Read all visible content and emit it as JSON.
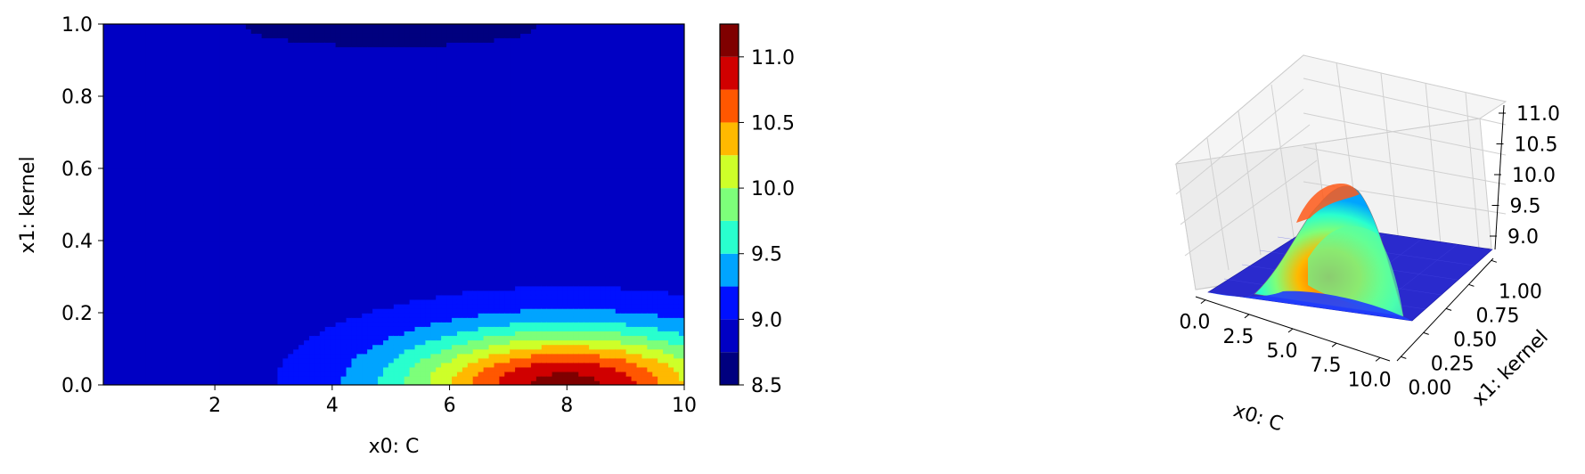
{
  "chart_data": [
    {
      "type": "contour",
      "xlabel": "x0: C",
      "ylabel": "x1: kernel",
      "xlim": [
        0.1,
        10
      ],
      "ylim": [
        0,
        1
      ],
      "xticks": [
        "2",
        "4",
        "6",
        "8",
        "10"
      ],
      "yticks": [
        "0.0",
        "0.2",
        "0.4",
        "0.6",
        "0.8",
        "1.0"
      ],
      "colormap": "jet",
      "levels": [
        8.5,
        8.75,
        9.0,
        9.25,
        9.5,
        9.75,
        10.0,
        10.25,
        10.5,
        10.75,
        11.0,
        11.25
      ],
      "level_colors": [
        "#00007f",
        "#0000c4",
        "#0010ff",
        "#00a4ff",
        "#29ffce",
        "#7dff7a",
        "#ceff29",
        "#ffb900",
        "#ff5700",
        "#d00000",
        "#7f0000"
      ],
      "colorbar_ticks": [
        "8.5",
        "9.0",
        "9.5",
        "10.0",
        "10.5",
        "11.0"
      ],
      "peak": {
        "x": 8.0,
        "y": 0.0,
        "value": 11.0
      },
      "min_region": {
        "x": 5.0,
        "y": 1.0,
        "value": 8.7
      }
    },
    {
      "type": "surface3d",
      "xlabel": "x0: C",
      "ylabel": "x1: kernel",
      "xticks": [
        "0.0",
        "2.5",
        "5.0",
        "7.5",
        "10.0"
      ],
      "yticks": [
        "0.00",
        "0.25",
        "0.50",
        "0.75",
        "1.00"
      ],
      "zticks": [
        "9.0",
        "9.5",
        "10.0",
        "10.5",
        "11.0"
      ],
      "colormap": "jet"
    }
  ]
}
